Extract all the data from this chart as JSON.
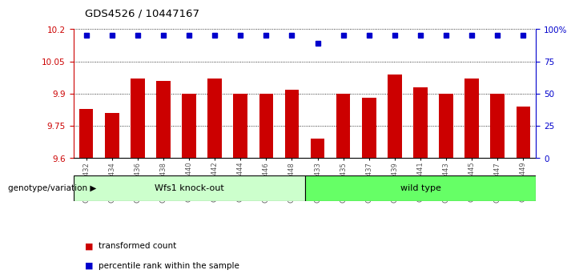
{
  "title": "GDS4526 / 10447167",
  "samples": [
    "GSM825432",
    "GSM825434",
    "GSM825436",
    "GSM825438",
    "GSM825440",
    "GSM825442",
    "GSM825444",
    "GSM825446",
    "GSM825448",
    "GSM825433",
    "GSM825435",
    "GSM825437",
    "GSM825439",
    "GSM825441",
    "GSM825443",
    "GSM825445",
    "GSM825447",
    "GSM825449"
  ],
  "bar_values": [
    9.83,
    9.81,
    9.97,
    9.96,
    9.9,
    9.97,
    9.9,
    9.9,
    9.92,
    9.69,
    9.9,
    9.88,
    9.99,
    9.93,
    9.9,
    9.97,
    9.9,
    9.84
  ],
  "percentile_values": [
    10.17,
    10.17,
    10.17,
    10.17,
    10.17,
    10.17,
    10.17,
    10.17,
    10.17,
    10.135,
    10.17,
    10.17,
    10.17,
    10.17,
    10.17,
    10.17,
    10.17,
    10.17
  ],
  "bar_color": "#cc0000",
  "percentile_color": "#0000cc",
  "ylim_left": [
    9.6,
    10.2
  ],
  "ylim_right": [
    0,
    100
  ],
  "yticks_left": [
    9.6,
    9.75,
    9.9,
    10.05,
    10.2
  ],
  "yticks_right": [
    0,
    25,
    50,
    75,
    100
  ],
  "ytick_labels_left": [
    "9.6",
    "9.75",
    "9.9",
    "10.05",
    "10.2"
  ],
  "ytick_labels_right": [
    "0",
    "25",
    "50",
    "75",
    "100%"
  ],
  "group1_label": "Wfs1 knock-out",
  "group2_label": "wild type",
  "group1_color": "#ccffcc",
  "group2_color": "#66ff66",
  "group1_count": 9,
  "group2_count": 9,
  "genotype_label": "genotype/variation",
  "legend_bar_label": "transformed count",
  "legend_pct_label": "percentile rank within the sample",
  "bar_width": 0.55,
  "background_color": "#ffffff",
  "plot_bg_color": "#ffffff",
  "tick_color_left": "#cc0000",
  "tick_color_right": "#0000cc"
}
